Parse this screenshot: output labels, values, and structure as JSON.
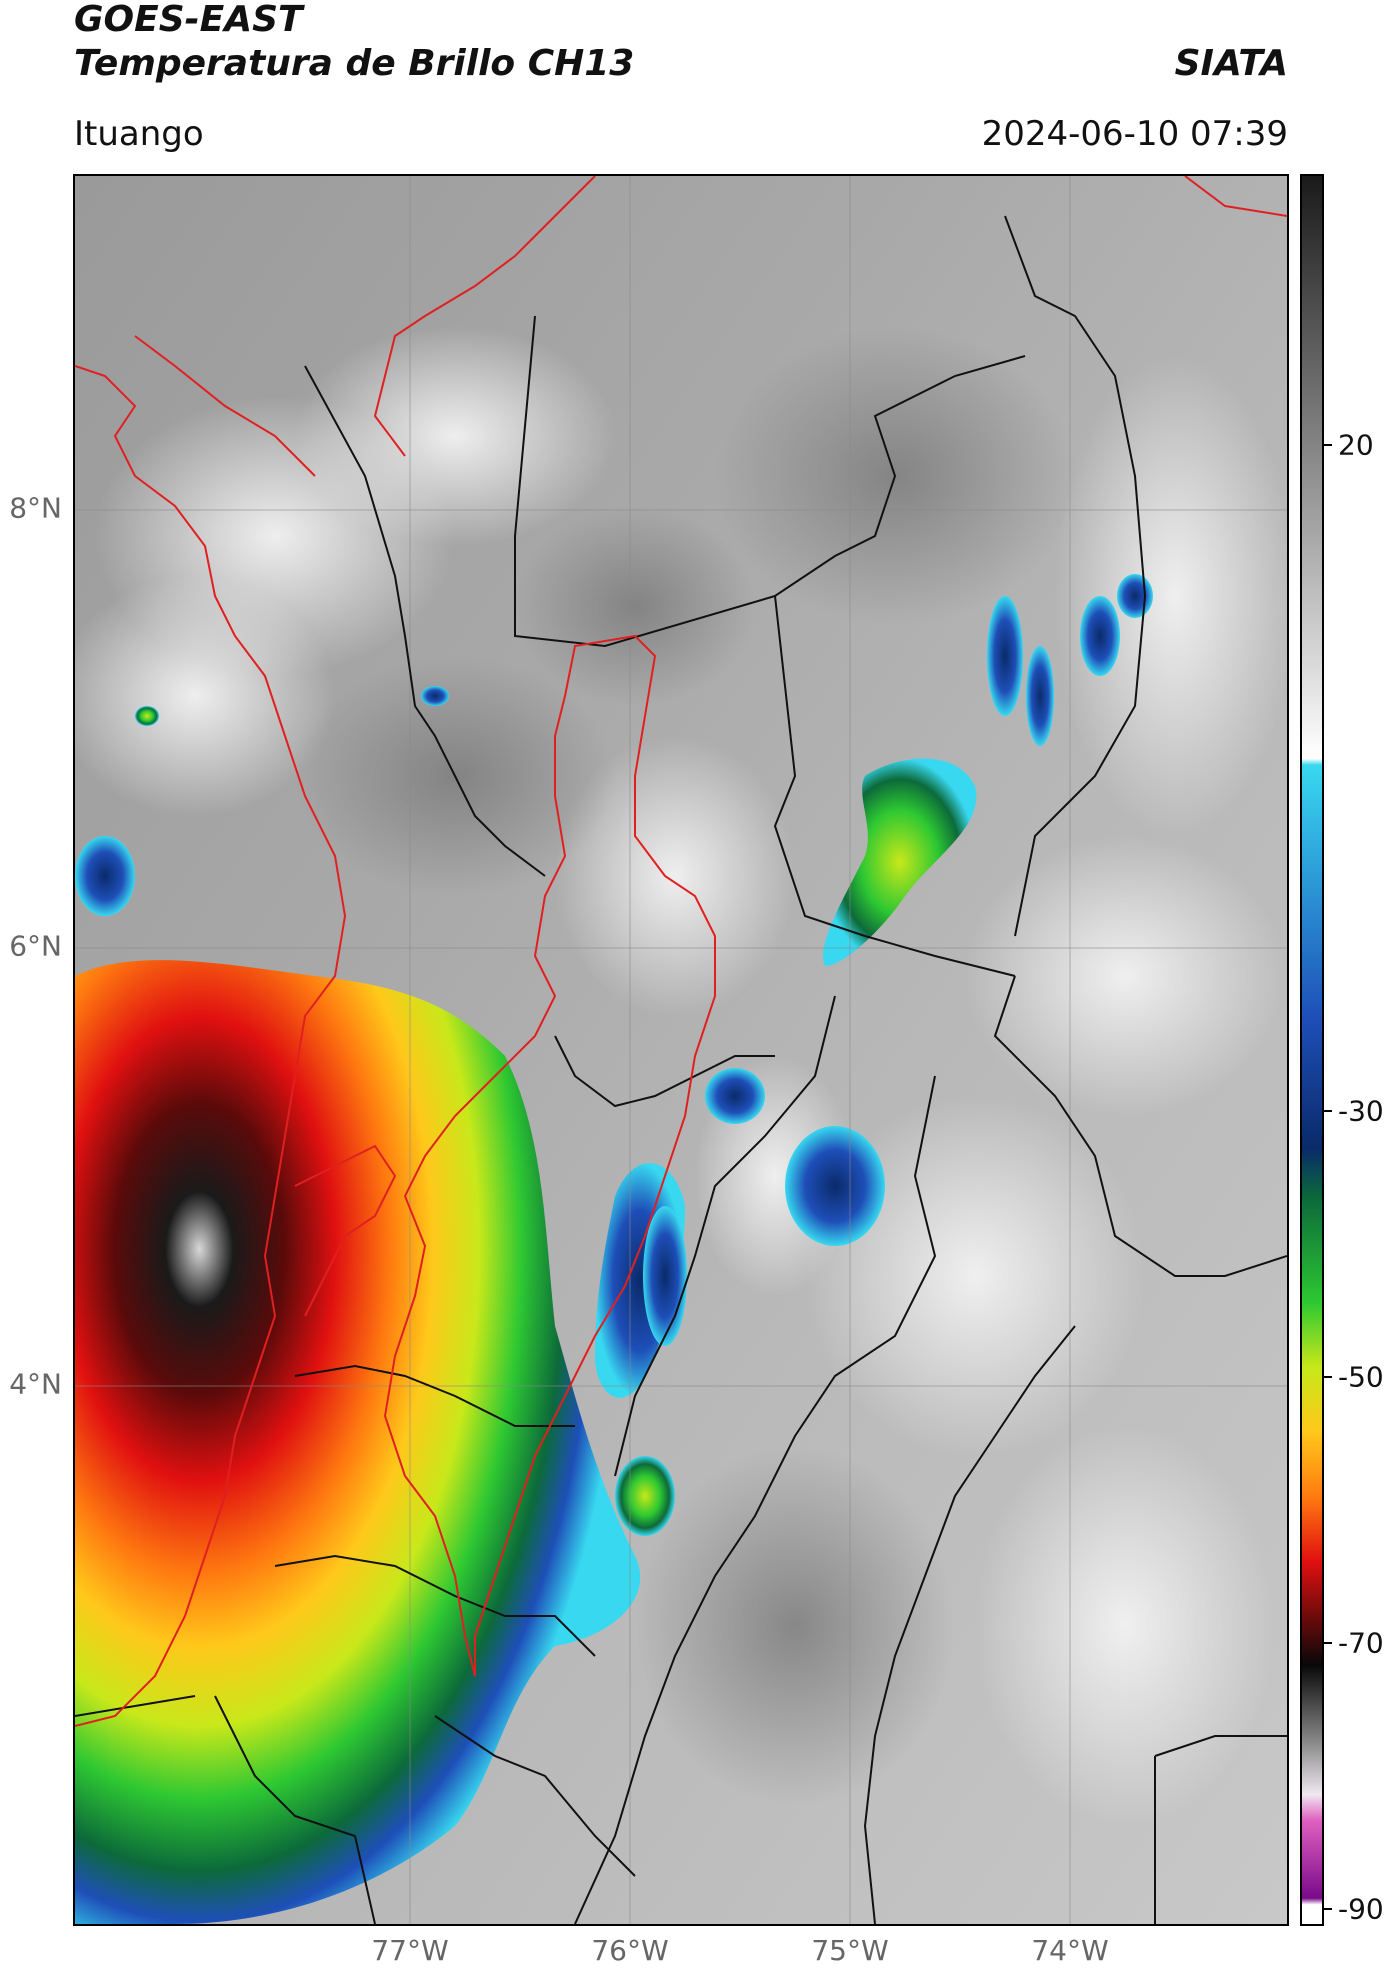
{
  "header": {
    "satellite": "GOES-EAST",
    "product": "Temperatura de Brillo CH13",
    "organization": "SIATA",
    "region": "Ituango",
    "datetime": "2024-06-10 07:39"
  },
  "axes": {
    "lat_labels": [
      "8°N",
      "6°N",
      "4°N"
    ],
    "lon_labels": [
      "77°W",
      "76°W",
      "75°W",
      "74°W"
    ]
  },
  "colorbar": {
    "labels": [
      "20",
      "-30",
      "-50",
      "-70",
      "-90"
    ],
    "range": [
      -90,
      45
    ],
    "stops": [
      {
        "v": 45,
        "c": "#1a1a1a"
      },
      {
        "v": 0,
        "c": "#ffffff"
      },
      {
        "v": -0.5,
        "c": "#38d8f0"
      },
      {
        "v": -20,
        "c": "#1e4fb8"
      },
      {
        "v": -30,
        "c": "#0a2a6a"
      },
      {
        "v": -34,
        "c": "#0c6a3a"
      },
      {
        "v": -42,
        "c": "#2ec832"
      },
      {
        "v": -47,
        "c": "#c8e81a"
      },
      {
        "v": -52,
        "c": "#ffc81a"
      },
      {
        "v": -57,
        "c": "#ff7a10"
      },
      {
        "v": -62,
        "c": "#e01010"
      },
      {
        "v": -67,
        "c": "#5a0a0a"
      },
      {
        "v": -70,
        "c": "#080808"
      },
      {
        "v": -76,
        "c": "#8a8a8a"
      },
      {
        "v": -80,
        "c": "#f0e8f0"
      },
      {
        "v": -82,
        "c": "#e060c0"
      },
      {
        "v": -88,
        "c": "#7a0a8a"
      },
      {
        "v": -88.5,
        "c": "#ffffff"
      },
      {
        "v": -90,
        "c": "#ffffff"
      }
    ]
  }
}
